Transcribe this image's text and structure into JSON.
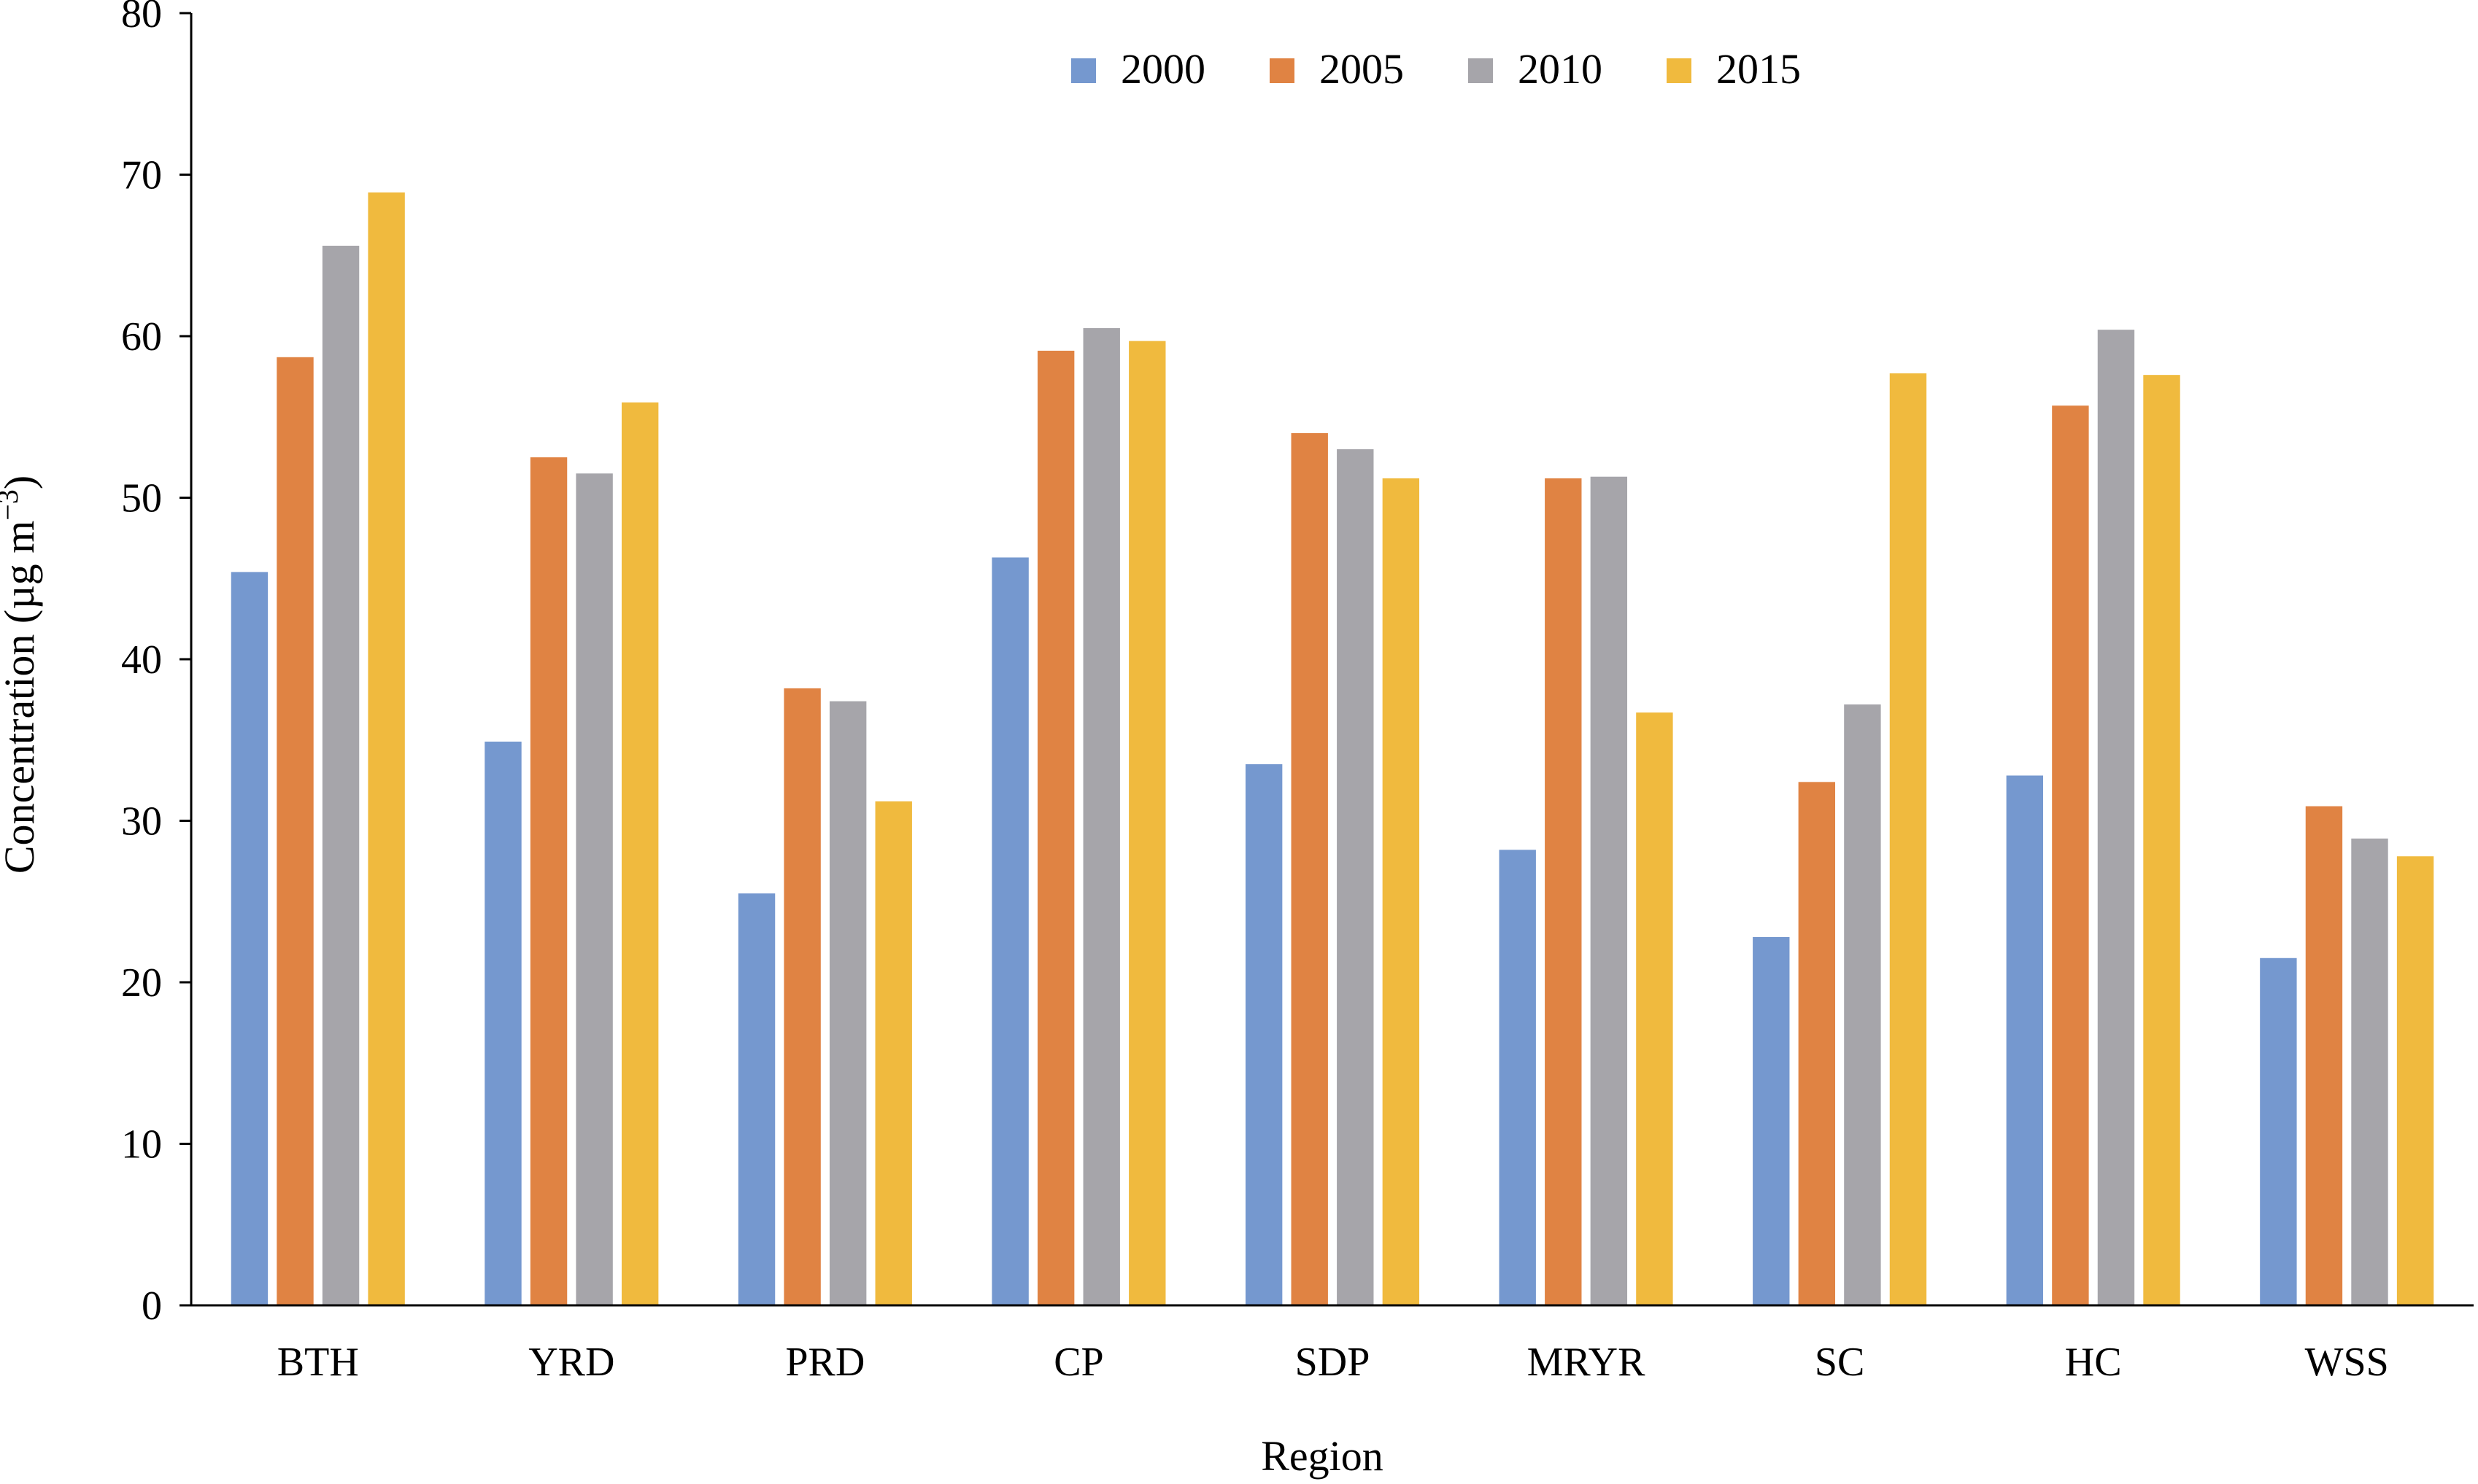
{
  "chart_data": {
    "type": "bar",
    "categories": [
      "BTH",
      "YRD",
      "PRD",
      "CP",
      "SDP",
      "MRYR",
      "SC",
      "HC",
      "WSS"
    ],
    "series": [
      {
        "name": "2000",
        "color": "#7598CF",
        "values": [
          45.4,
          34.9,
          25.5,
          46.3,
          33.5,
          28.2,
          22.8,
          32.8,
          21.5
        ]
      },
      {
        "name": "2005",
        "color": "#E08343",
        "values": [
          58.7,
          52.5,
          38.2,
          59.1,
          54.0,
          51.2,
          32.4,
          55.7,
          30.9
        ]
      },
      {
        "name": "2010",
        "color": "#A6A5AA",
        "values": [
          65.6,
          51.5,
          37.4,
          60.5,
          53.0,
          51.3,
          37.2,
          60.4,
          28.9
        ]
      },
      {
        "name": "2015",
        "color": "#F0BA3E",
        "values": [
          68.9,
          55.9,
          31.2,
          59.7,
          51.2,
          36.7,
          57.7,
          57.6,
          27.8
        ]
      }
    ],
    "xlabel": "Region",
    "ylabel": "Concentration (µg m",
    "ylabel_sup": "−3",
    "ylabel_close": ")",
    "ylim": [
      0,
      80
    ],
    "yticks": [
      "0",
      "10",
      "20",
      "30",
      "40",
      "50",
      "60",
      "70",
      "80"
    ],
    "grid": false,
    "legend_position": "top-center"
  }
}
